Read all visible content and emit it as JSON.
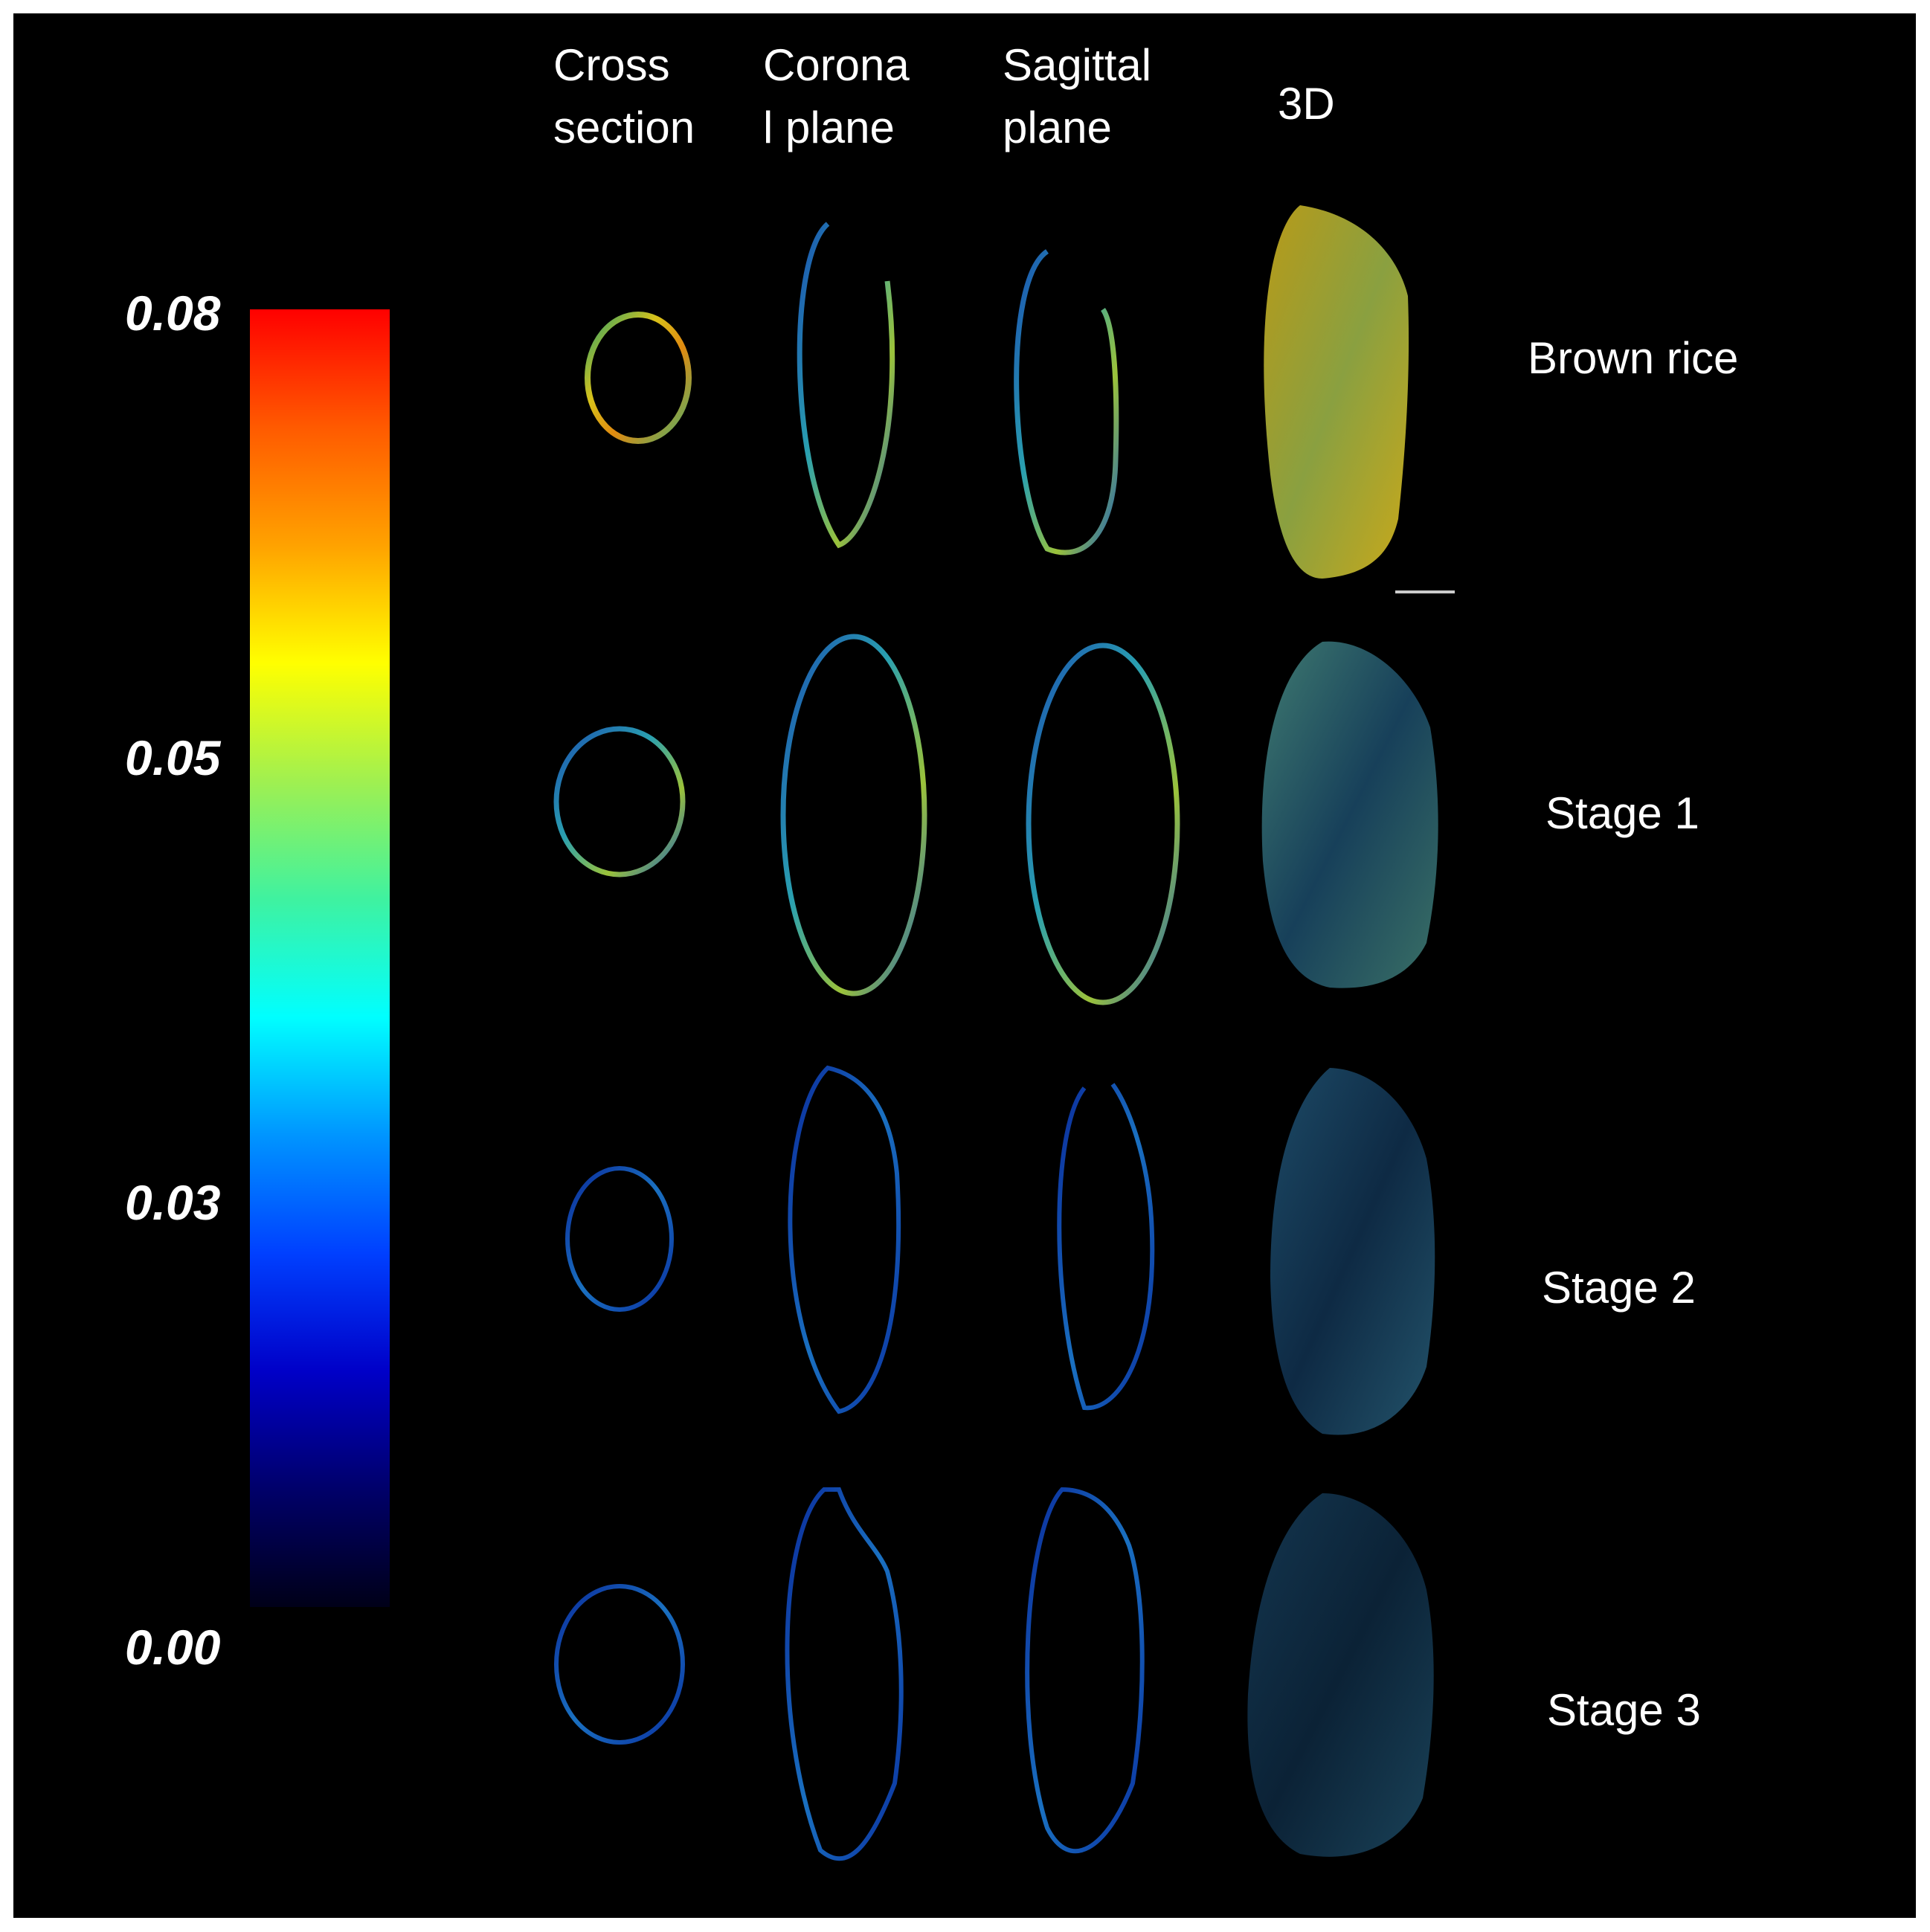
{
  "colorbar": {
    "ticks": [
      "0.08",
      "0.05",
      "0.03",
      "0.00"
    ],
    "stops": [
      "#ff0000",
      "#ff5a00",
      "#ffa200",
      "#ffff00",
      "#a0f050",
      "#3ff2a0",
      "#00ffff",
      "#0095ff",
      "#0040ff",
      "#0000c8",
      "#00006a",
      "#000018"
    ]
  },
  "columns": [
    "Cross\nsection",
    "Corona\nl plane",
    "Sagittal\nplane",
    "3D"
  ],
  "rows": [
    "Brown rice",
    "Stage 1",
    "Stage 2",
    "Stage 3"
  ]
}
